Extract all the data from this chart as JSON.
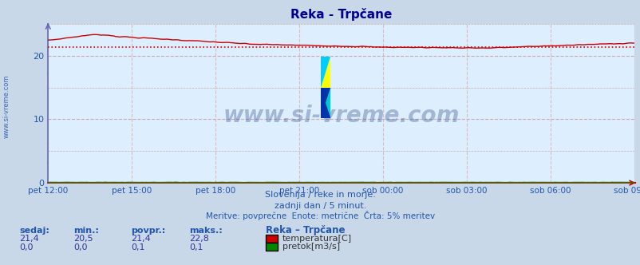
{
  "title": "Reka - Trpčane",
  "title_color": "#000099",
  "bg_color": "#ddeeff",
  "outer_bg_color": "#c8d8e8",
  "ylim": [
    0,
    25
  ],
  "yticks": [
    0,
    10,
    20
  ],
  "xtick_labels": [
    "pet 12:00",
    "pet 15:00",
    "pet 18:00",
    "pet 21:00",
    "sob 00:00",
    "sob 03:00",
    "sob 06:00",
    "sob 09:00"
  ],
  "temp_color": "#cc0000",
  "flow_color": "#008800",
  "avg_color": "#cc0000",
  "temp_avg": 21.4,
  "grid_h_color": "#ccaaaa",
  "grid_v_color": "#ddbbbb",
  "subtitle1": "Slovenija / reke in morje.",
  "subtitle2": "zadnji dan / 5 minut.",
  "subtitle3": "Meritve: povprečne  Enote: metrične  Črta: 5% meritev",
  "stats_header": [
    "sedaj:",
    "min.:",
    "povpr.:",
    "maks.:"
  ],
  "stats_temp": [
    "21,4",
    "20,5",
    "21,4",
    "22,8"
  ],
  "stats_flow": [
    "0,0",
    "0,0",
    "0,1",
    "0,1"
  ],
  "legend_title": "Reka – Trpčane",
  "legend_temp": "temperatura[C]",
  "legend_flow": "pretok[m3/s]",
  "watermark": "www.si-vreme.com",
  "watermark_color": "#1a3a7a",
  "sidebar_text": "www.si-vreme.com",
  "sidebar_color": "#2255aa",
  "text_color": "#2255aa",
  "stats_value_color": "#333399",
  "spine_left_color": "#6666bb",
  "spine_bottom_color": "#cc0000",
  "n_points": 288
}
